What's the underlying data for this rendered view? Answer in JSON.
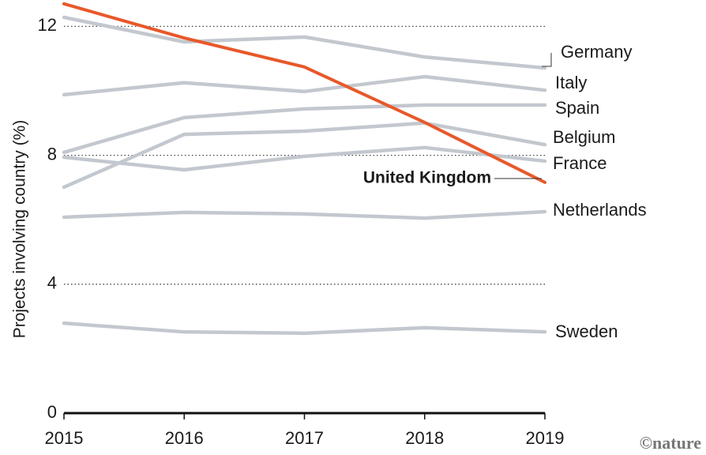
{
  "chart_data": {
    "type": "line",
    "y_axis_label": "Projects involving country (%)",
    "credit": "©nature",
    "x": [
      2015,
      2016,
      2017,
      2018,
      2019
    ],
    "xlim": [
      2015,
      2019
    ],
    "xticks": [
      2015,
      2016,
      2017,
      2018,
      2019
    ],
    "ylim": [
      0,
      12.8
    ],
    "yticks": [
      0,
      4,
      8,
      12
    ],
    "grid": true,
    "series": [
      {
        "name": "Germany",
        "color": "#c3c8cf",
        "values": [
          12.28,
          11.52,
          11.67,
          11.05,
          10.71
        ]
      },
      {
        "name": "Italy",
        "color": "#c3c8cf",
        "values": [
          9.88,
          10.25,
          9.98,
          10.44,
          10.02
        ]
      },
      {
        "name": "Spain",
        "color": "#c3c8cf",
        "values": [
          8.09,
          9.17,
          9.44,
          9.56,
          9.56
        ]
      },
      {
        "name": "Belgium",
        "color": "#c3c8cf",
        "values": [
          7.01,
          8.65,
          8.75,
          9.0,
          8.33
        ]
      },
      {
        "name": "France",
        "color": "#c3c8cf",
        "values": [
          7.94,
          7.55,
          7.97,
          8.24,
          7.82
        ]
      },
      {
        "name": "Netherlands",
        "color": "#c3c8cf",
        "values": [
          6.08,
          6.23,
          6.18,
          6.05,
          6.25
        ]
      },
      {
        "name": "Sweden",
        "color": "#c3c8cf",
        "values": [
          2.79,
          2.52,
          2.48,
          2.65,
          2.52
        ]
      },
      {
        "name": "United Kingdom",
        "color": "#e8582a",
        "values": [
          12.7,
          11.64,
          10.74,
          9.02,
          7.16
        ]
      }
    ]
  }
}
